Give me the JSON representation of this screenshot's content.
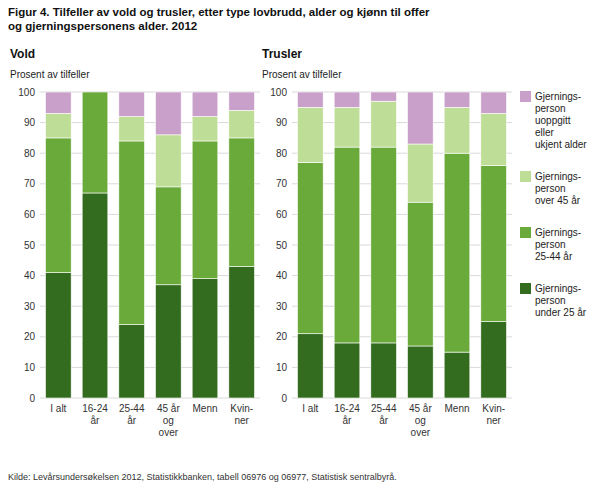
{
  "title": "Figur 4. Tilfeller av vold og trusler, etter type lovbrudd, alder og kjønn til offer\nog gjerningspersonens alder. 2012",
  "footnote": "Kilde: Levårsundersøkelsen 2012, Statistikkbanken, tabell 06976 og 06977, Statistisk sentralbyrå.",
  "chart_data": [
    {
      "type": "bar",
      "stacked": true,
      "title": "Vold",
      "y_label": "Prosent av tilfeller",
      "categories": [
        "I alt",
        "16-24\når",
        "25-44\når",
        "45 år\nog\nover",
        "Menn",
        "Kvin-\nner"
      ],
      "series": [
        {
          "name": "Gjernings-\nperson\nunder 25 år",
          "color": "#336b1f",
          "values": [
            41,
            67,
            24,
            37,
            39,
            43
          ]
        },
        {
          "name": "Gjernings-\nperson\n25-44 år",
          "color": "#6aaa3a",
          "values": [
            44,
            33,
            60,
            32,
            45,
            42
          ]
        },
        {
          "name": "Gjernings-\nperson\nover 45 år",
          "color": "#bedd96",
          "values": [
            8,
            0,
            8,
            17,
            8,
            9
          ]
        },
        {
          "name": "Gjernings-\nperson\nuoppgitt\neller\nukjent alder",
          "color": "#c9a0c9",
          "values": [
            7,
            0,
            8,
            14,
            8,
            6
          ]
        }
      ],
      "ylim": [
        0,
        100
      ],
      "yticks": [
        0,
        10,
        20,
        30,
        40,
        50,
        60,
        70,
        80,
        90,
        100
      ],
      "grid": true
    },
    {
      "type": "bar",
      "stacked": true,
      "title": "Trusler",
      "y_label": "Prosent av tilfeller",
      "categories": [
        "I alt",
        "16-24\når",
        "25-44\når",
        "45 år\nog\nover",
        "Menn",
        "Kvin-\nner"
      ],
      "series": [
        {
          "name": "Gjernings-\nperson\nunder 25 år",
          "color": "#336b1f",
          "values": [
            21,
            18,
            18,
            17,
            15,
            25
          ]
        },
        {
          "name": "Gjernings-\nperson\n25-44 år",
          "color": "#6aaa3a",
          "values": [
            56,
            64,
            64,
            47,
            65,
            51
          ]
        },
        {
          "name": "Gjernings-\nperson\nover 45 år",
          "color": "#bedd96",
          "values": [
            18,
            13,
            15,
            19,
            15,
            17
          ]
        },
        {
          "name": "Gjernings-\nperson\nuoppgitt\neller\nukjent alder",
          "color": "#c9a0c9",
          "values": [
            5,
            5,
            3,
            17,
            5,
            7
          ]
        }
      ],
      "ylim": [
        0,
        100
      ],
      "yticks": [
        0,
        10,
        20,
        30,
        40,
        50,
        60,
        70,
        80,
        90,
        100
      ],
      "grid": true,
      "legend": "right"
    }
  ]
}
